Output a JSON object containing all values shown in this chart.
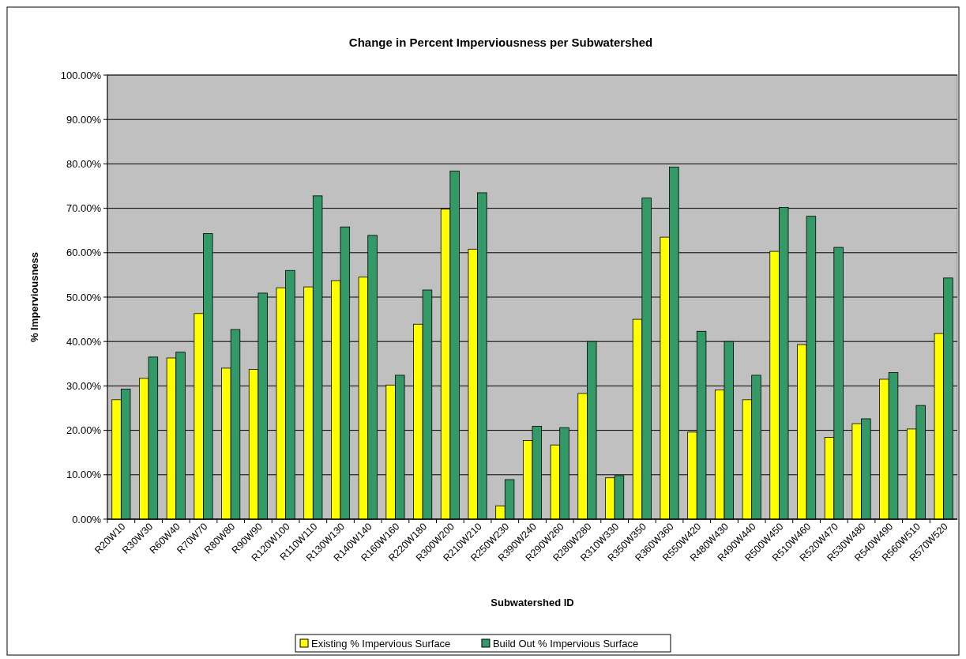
{
  "chart_data": {
    "type": "bar",
    "title": "Change in Percent Imperviousness per Subwatershed",
    "xlabel": "Subwatershed ID",
    "ylabel": "% Imperviousness",
    "categories": [
      "R20W10",
      "R30W30",
      "R60W40",
      "R70W70",
      "R80W80",
      "R90W90",
      "R120W100",
      "R110W110",
      "R130W130",
      "R140W140",
      "R160W160",
      "R220W180",
      "R300W200",
      "R210W210",
      "R250W230",
      "R390W240",
      "R290W260",
      "R280W280",
      "R310W330",
      "R350W350",
      "R360W360",
      "R550W420",
      "R480W430",
      "R490W440",
      "R500W450",
      "R510W460",
      "R520W470",
      "R530W480",
      "R540W490",
      "R560W510",
      "R570W520"
    ],
    "series": [
      {
        "name": "Existing % Impervious Surface",
        "color": "#ffff00",
        "values": [
          26.9,
          31.7,
          36.3,
          46.3,
          34.0,
          33.7,
          52.1,
          52.3,
          53.7,
          54.5,
          30.2,
          43.9,
          69.8,
          60.8,
          3.0,
          17.7,
          16.7,
          28.3,
          9.3,
          45.0,
          63.5,
          19.6,
          29.1,
          26.9,
          60.3,
          39.3,
          18.4,
          21.5,
          31.5,
          20.3,
          41.8
        ]
      },
      {
        "name": "Build Out % Impervious Surface",
        "color": "#339966",
        "values": [
          29.3,
          36.5,
          37.6,
          64.3,
          42.7,
          50.9,
          56.0,
          72.8,
          65.8,
          63.9,
          32.4,
          51.6,
          78.4,
          73.5,
          8.9,
          20.9,
          20.6,
          40.0,
          9.8,
          72.3,
          79.3,
          42.3,
          40.0,
          32.4,
          70.2,
          68.2,
          61.2,
          22.6,
          33.0,
          25.6,
          54.3
        ]
      }
    ],
    "ylim": [
      0,
      100
    ],
    "yticks": [
      {
        "value": 0,
        "label": "0.00%"
      },
      {
        "value": 10,
        "label": "10.00%"
      },
      {
        "value": 20,
        "label": "20.00%"
      },
      {
        "value": 30,
        "label": "30.00%"
      },
      {
        "value": 40,
        "label": "40.00%"
      },
      {
        "value": 50,
        "label": "50.00%"
      },
      {
        "value": 60,
        "label": "60.00%"
      },
      {
        "value": 70,
        "label": "70.00%"
      },
      {
        "value": 80,
        "label": "80.00%"
      },
      {
        "value": 90,
        "label": "90.00%"
      },
      {
        "value": 100,
        "label": "100.00%"
      }
    ],
    "grid": "y",
    "legend": "bottom"
  }
}
